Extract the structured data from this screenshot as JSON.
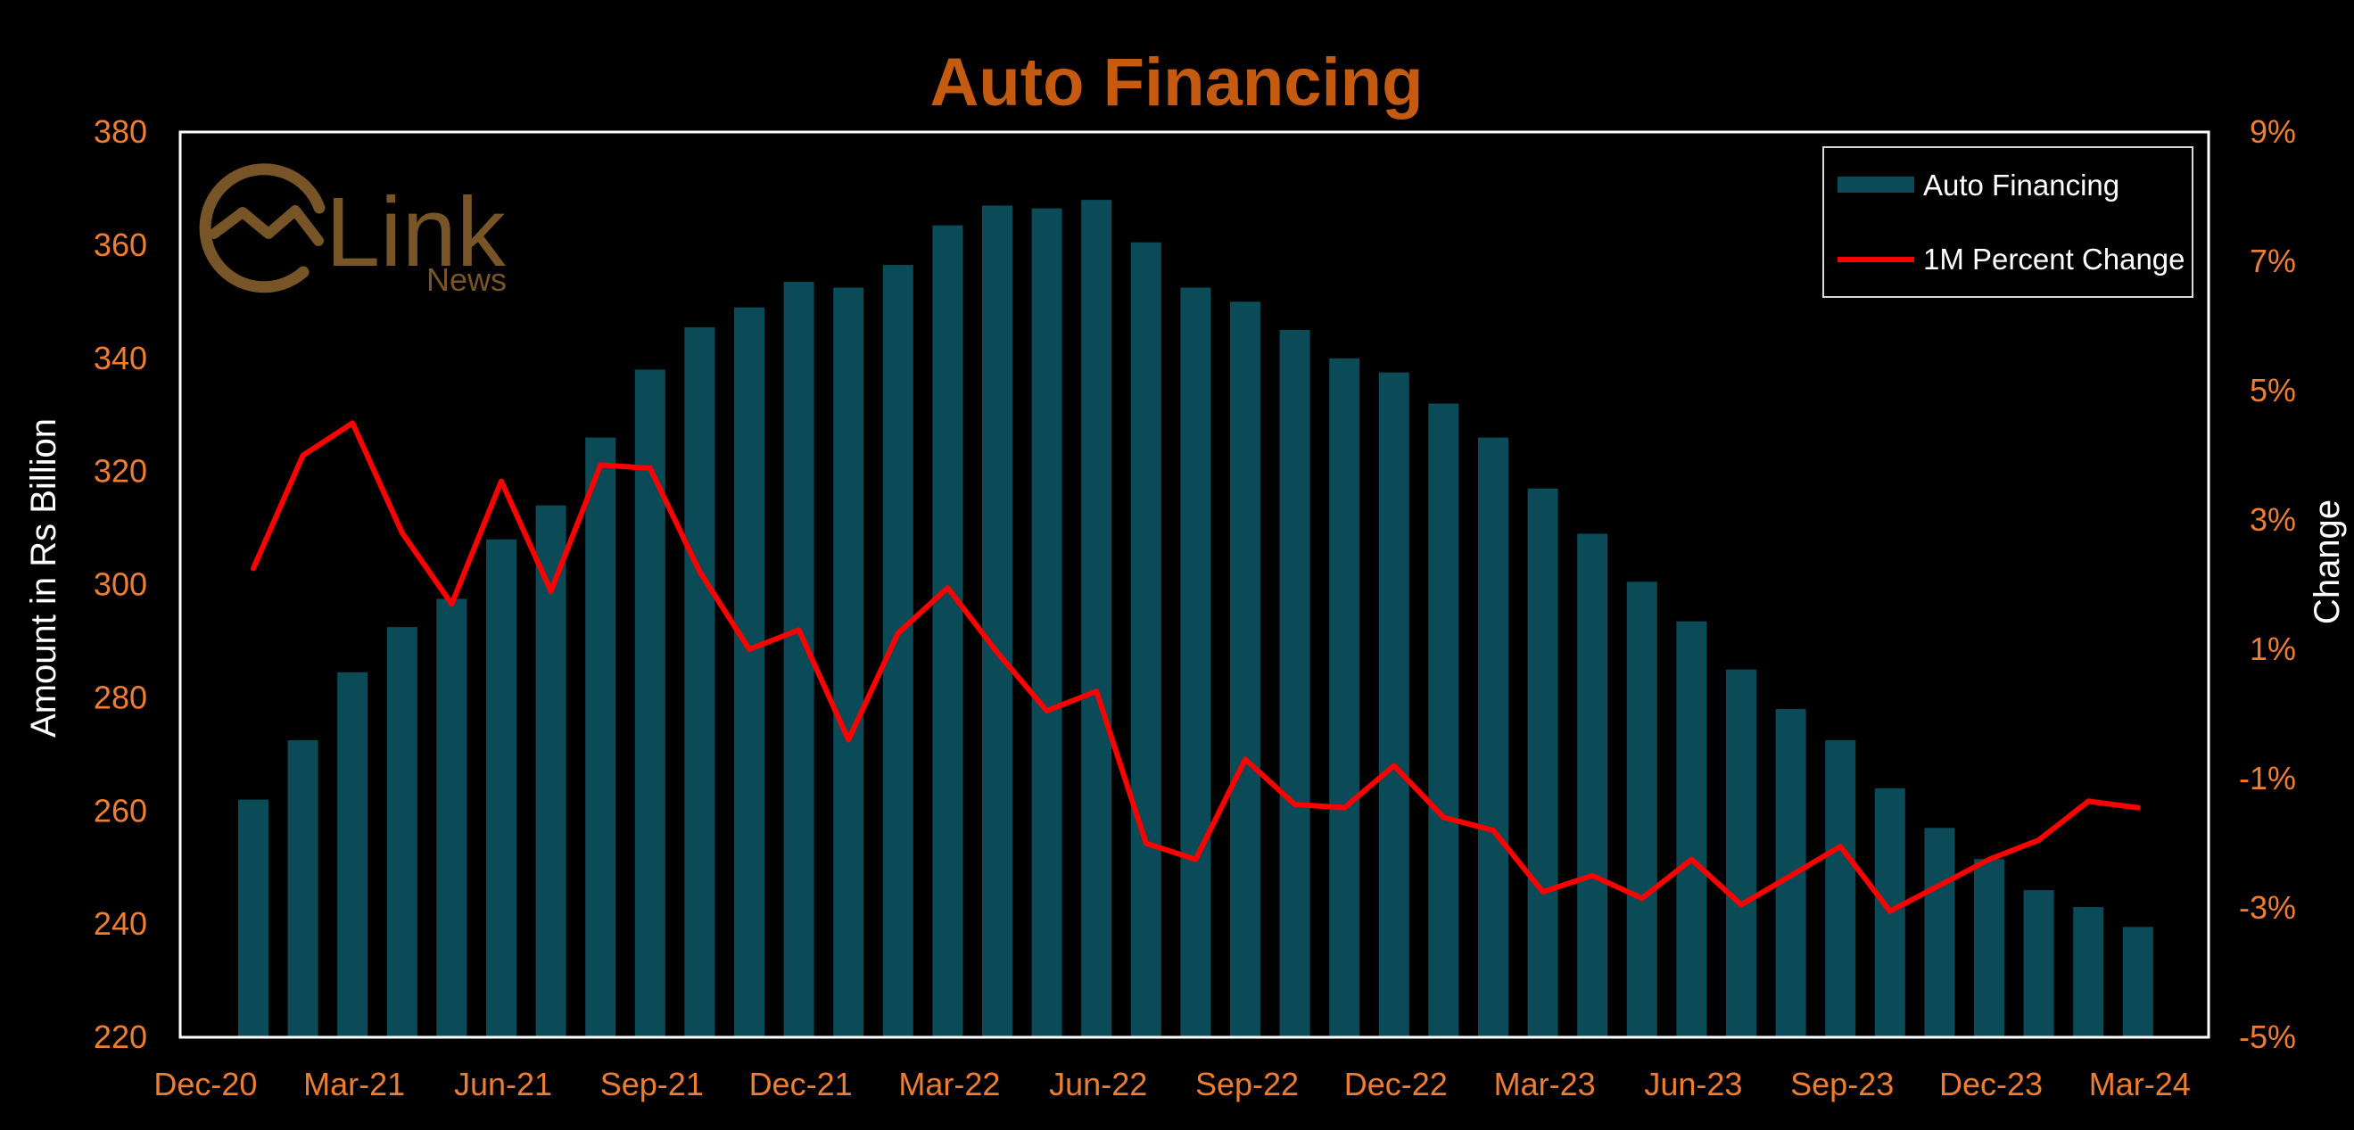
{
  "chart_data": {
    "type": "bar",
    "title": "Auto Financing",
    "ylabel": "Amount in Rs Billion",
    "y2label": "Change",
    "ylim": [
      220,
      380
    ],
    "y2lim": [
      -5,
      9
    ],
    "yticks": [
      "220",
      "240",
      "260",
      "280",
      "300",
      "320",
      "340",
      "360",
      "380"
    ],
    "y2ticks": [
      "-5%",
      "-3%",
      "-1%",
      "1%",
      "3%",
      "5%",
      "7%",
      "9%"
    ],
    "xtick_labels": [
      "Dec-20",
      "Mar-21",
      "Jun-21",
      "Sep-21",
      "Dec-21",
      "Mar-22",
      "Jun-22",
      "Sep-22",
      "Dec-22",
      "Mar-23",
      "Jun-23",
      "Sep-23",
      "Dec-23",
      "Mar-24"
    ],
    "categories": [
      "Jan-21",
      "Feb-21",
      "Mar-21",
      "Apr-21",
      "May-21",
      "Jun-21",
      "Jul-21",
      "Aug-21",
      "Sep-21",
      "Oct-21",
      "Nov-21",
      "Dec-21",
      "Jan-22",
      "Feb-22",
      "Mar-22",
      "Apr-22",
      "May-22",
      "Jun-22",
      "Jul-22",
      "Aug-22",
      "Sep-22",
      "Oct-22",
      "Nov-22",
      "Dec-22",
      "Jan-23",
      "Feb-23",
      "Mar-23",
      "Apr-23",
      "May-23",
      "Jun-23",
      "Jul-23",
      "Aug-23",
      "Sep-23",
      "Oct-23",
      "Nov-23",
      "Dec-23",
      "Jan-24",
      "Feb-24",
      "Mar-24"
    ],
    "series": [
      {
        "name": "Auto Financing",
        "kind": "bar",
        "axis": "left",
        "color": "#0b4a57",
        "values": [
          262,
          272.5,
          284.5,
          292.5,
          297.5,
          308,
          314,
          326,
          338,
          345.5,
          349,
          353.5,
          352.5,
          356.5,
          363.5,
          367,
          366.5,
          368,
          360.5,
          352.5,
          350,
          345,
          340,
          337.5,
          332,
          326,
          317,
          309,
          300.5,
          293.5,
          285,
          278,
          272.5,
          264,
          257,
          251.5,
          246,
          243,
          239.5
        ]
      },
      {
        "name": "1M Percent Change",
        "kind": "line",
        "axis": "right",
        "color": "#ff0000",
        "values": [
          2.25,
          4.0,
          4.5,
          2.8,
          1.7,
          3.6,
          1.9,
          3.85,
          3.8,
          2.2,
          1.0,
          1.3,
          -0.4,
          1.25,
          1.95,
          0.95,
          0.05,
          0.35,
          -2.0,
          -2.25,
          -0.7,
          -1.4,
          -1.45,
          -0.8,
          -1.6,
          -1.8,
          -2.75,
          -2.5,
          -2.85,
          -2.25,
          -2.95,
          -2.5,
          -2.05,
          -3.05,
          -2.65,
          -2.25,
          -1.95,
          -1.35,
          -1.45
        ]
      }
    ],
    "legend": {
      "position": "top-right",
      "entries": [
        "Auto Financing",
        "1M Percent Change"
      ]
    },
    "grid": false
  },
  "colors": {
    "background": "#000000",
    "title": "#c55a11",
    "ticks": "#ed7d31",
    "axis_title": "#ffffff",
    "frame": "#ffffff",
    "logo": "#7f5a2a"
  },
  "watermark": {
    "icon": "chart-circle-logo-icon",
    "brand": "Link",
    "sub": "News"
  }
}
